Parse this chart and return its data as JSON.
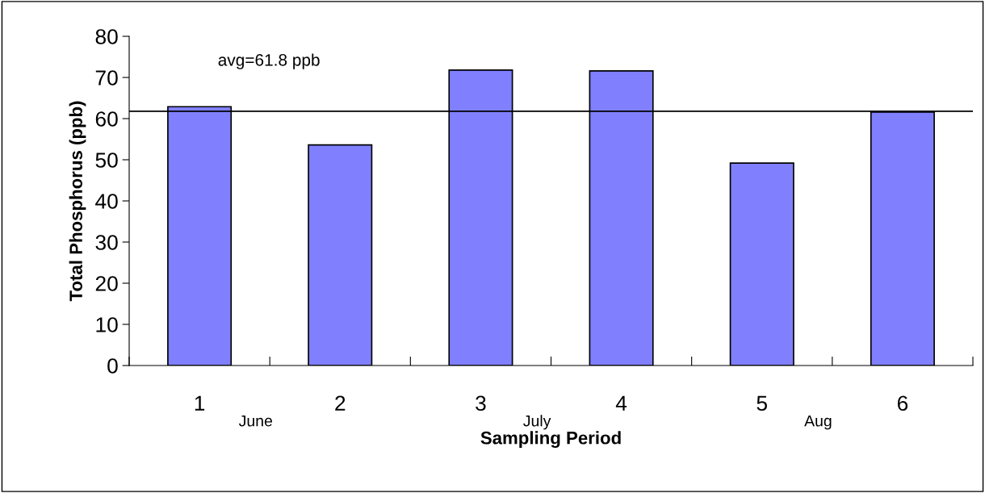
{
  "chart_data": {
    "type": "bar",
    "xlabel": "Sampling Period",
    "ylabel": "Total Phosphorus (ppb)",
    "categories": [
      "1",
      "2",
      "3",
      "4",
      "5",
      "6"
    ],
    "values": [
      62.9,
      53.6,
      71.8,
      71.6,
      49.2,
      61.6
    ],
    "color": "#8080ff",
    "ylim": [
      0,
      80
    ],
    "yticks": [
      0,
      10,
      20,
      30,
      40,
      50,
      60,
      70,
      80
    ],
    "grid": false,
    "legend": false,
    "ref_lines": [
      {
        "axis": "y",
        "value": 61.8,
        "label": "avg=61.8 ppb",
        "color": "#000000",
        "line_style": "solid"
      }
    ],
    "annotations": [
      "June",
      "July",
      "Aug"
    ]
  }
}
